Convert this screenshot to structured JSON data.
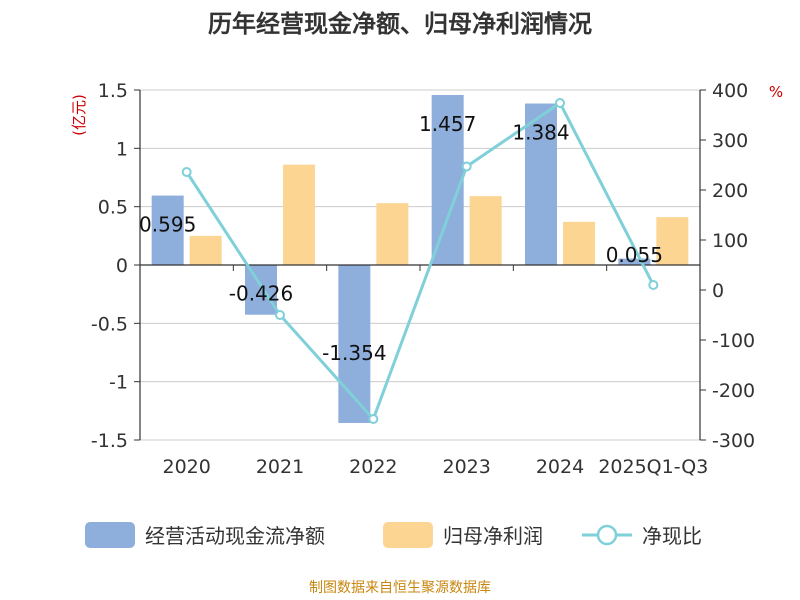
{
  "chart_data": {
    "type": "bar",
    "title": "历年经营现金净额、归母净利润情况",
    "categories": [
      "2020",
      "2021",
      "2022",
      "2023",
      "2024",
      "2025Q1-Q3"
    ],
    "left_axis": {
      "unit": "(亿元)",
      "ylim": [
        -1.5,
        1.5
      ],
      "ticks": [
        "1.5",
        "1",
        "0.5",
        "0",
        "-0.5",
        "-1",
        "-1.5"
      ],
      "tick_values": [
        1.5,
        1,
        0.5,
        0,
        -0.5,
        -1,
        -1.5
      ]
    },
    "right_axis": {
      "unit": "%",
      "ylim": [
        -300,
        400
      ],
      "ticks": [
        "400",
        "300",
        "200",
        "100",
        "0",
        "-100",
        "-200",
        "-300"
      ],
      "tick_values": [
        400,
        300,
        200,
        100,
        0,
        -100,
        -200,
        -300
      ]
    },
    "grid": true,
    "legend_position": "bottom",
    "series": [
      {
        "name": "经营活动现金流净额",
        "kind": "bar",
        "axis": "left",
        "color": "#8eaedb",
        "values": [
          0.595,
          -0.426,
          -1.354,
          1.457,
          1.384,
          0.055
        ],
        "labels": [
          "0.595",
          "-0.426",
          "-1.354",
          "1.457",
          "1.384",
          "0.055"
        ]
      },
      {
        "name": "归母净利润",
        "kind": "bar",
        "axis": "left",
        "color": "#fdd592",
        "values": [
          0.25,
          0.86,
          0.53,
          0.59,
          0.37,
          0.41
        ]
      },
      {
        "name": "净现比",
        "kind": "line",
        "axis": "right",
        "color": "#7fd0d8",
        "values": [
          236,
          -50,
          -258,
          247,
          374,
          10
        ]
      }
    ],
    "source": "制图数据来自恒生聚源数据库"
  }
}
